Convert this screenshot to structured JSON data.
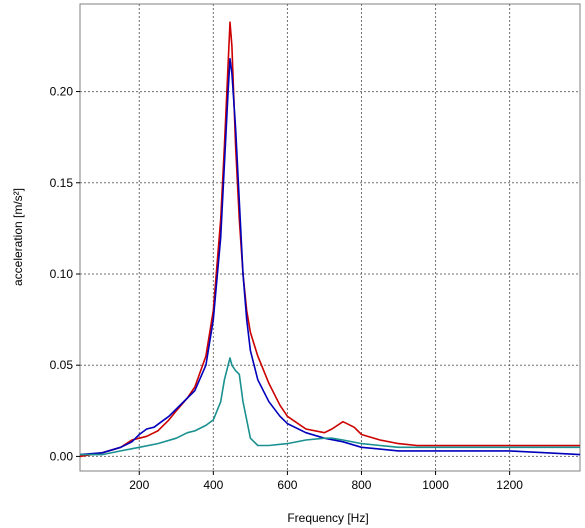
{
  "chart_data": {
    "type": "line",
    "title": "",
    "xlabel": "Frequency [Hz]",
    "ylabel": "acceleration [m/s²]",
    "xlim": [
      40,
      1390
    ],
    "ylim": [
      -0.008,
      0.248
    ],
    "x_ticks": [
      200,
      400,
      600,
      800,
      1000,
      1200
    ],
    "x_tick_labels": [
      "200",
      "400",
      "600",
      "800",
      "1000",
      "1200"
    ],
    "y_ticks": [
      0.0,
      0.05,
      0.1,
      0.15,
      0.2
    ],
    "y_tick_labels": [
      "0.00",
      "0.05",
      "0.10",
      "0.15",
      "0.20"
    ],
    "grid": true,
    "grid_style": "dotted",
    "legend": "none",
    "series": [
      {
        "color": "#cc0000",
        "x": [
          40,
          100,
          150,
          180,
          200,
          220,
          250,
          280,
          300,
          330,
          350,
          380,
          400,
          420,
          430,
          440,
          445,
          450,
          460,
          470,
          480,
          490,
          500,
          520,
          550,
          580,
          600,
          650,
          700,
          720,
          750,
          780,
          800,
          850,
          900,
          950,
          1000,
          1100,
          1200,
          1300,
          1390
        ],
        "y": [
          0.0,
          0.002,
          0.005,
          0.009,
          0.01,
          0.011,
          0.014,
          0.02,
          0.025,
          0.032,
          0.038,
          0.055,
          0.08,
          0.13,
          0.17,
          0.215,
          0.238,
          0.225,
          0.17,
          0.13,
          0.1,
          0.08,
          0.068,
          0.055,
          0.04,
          0.028,
          0.022,
          0.015,
          0.013,
          0.015,
          0.019,
          0.016,
          0.012,
          0.009,
          0.007,
          0.006,
          0.006,
          0.006,
          0.006,
          0.006,
          0.006
        ]
      },
      {
        "color": "#0000bb",
        "x": [
          40,
          100,
          150,
          180,
          200,
          220,
          240,
          260,
          280,
          300,
          330,
          350,
          380,
          400,
          420,
          430,
          440,
          445,
          450,
          460,
          470,
          480,
          490,
          500,
          520,
          550,
          580,
          600,
          650,
          700,
          750,
          800,
          850,
          900,
          1000,
          1100,
          1200,
          1300,
          1390
        ],
        "y": [
          0.001,
          0.002,
          0.005,
          0.008,
          0.012,
          0.015,
          0.016,
          0.019,
          0.022,
          0.026,
          0.032,
          0.036,
          0.05,
          0.075,
          0.12,
          0.16,
          0.2,
          0.218,
          0.21,
          0.18,
          0.14,
          0.1,
          0.075,
          0.058,
          0.042,
          0.03,
          0.022,
          0.018,
          0.013,
          0.01,
          0.008,
          0.005,
          0.004,
          0.003,
          0.003,
          0.003,
          0.003,
          0.002,
          0.001
        ]
      },
      {
        "color": "#1a9090",
        "x": [
          40,
          100,
          150,
          200,
          250,
          300,
          330,
          350,
          380,
          400,
          420,
          430,
          440,
          445,
          450,
          460,
          470,
          480,
          490,
          500,
          520,
          550,
          600,
          650,
          700,
          720,
          750,
          800,
          850,
          900,
          1000,
          1100,
          1200,
          1300,
          1390
        ],
        "y": [
          0.001,
          0.001,
          0.003,
          0.005,
          0.007,
          0.01,
          0.013,
          0.014,
          0.017,
          0.02,
          0.03,
          0.042,
          0.05,
          0.054,
          0.05,
          0.047,
          0.045,
          0.03,
          0.02,
          0.01,
          0.006,
          0.006,
          0.007,
          0.009,
          0.01,
          0.01,
          0.009,
          0.007,
          0.006,
          0.005,
          0.005,
          0.005,
          0.005,
          0.005,
          0.005
        ]
      }
    ]
  }
}
